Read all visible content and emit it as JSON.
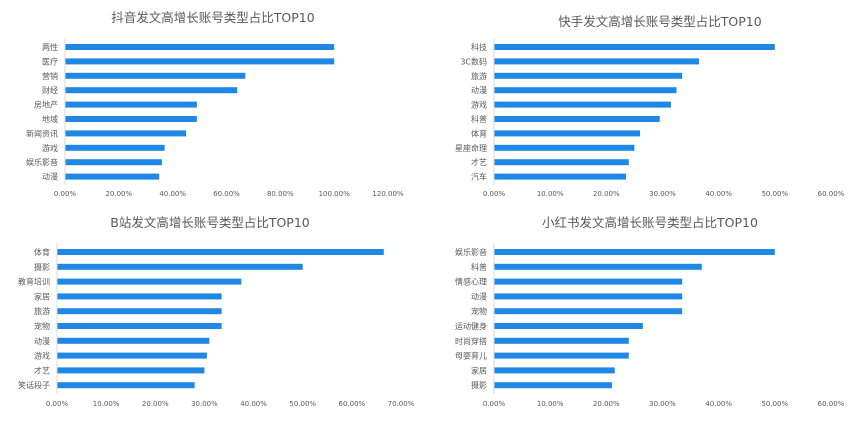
{
  "colors": {
    "bar": "#1f88e5",
    "axis": "#d9d9d9",
    "label": "#595959",
    "title": "#595959"
  },
  "chart_data": [
    {
      "type": "bar",
      "orientation": "horizontal",
      "title": "抖音发文高增长账号类型占比TOP10",
      "categories": [
        "两性",
        "医疗",
        "营销",
        "财经",
        "房地产",
        "地域",
        "新闻资讯",
        "游戏",
        "娱乐影音",
        "动漫"
      ],
      "values": [
        100,
        100,
        67,
        64,
        49,
        49,
        45,
        37,
        36,
        35
      ],
      "xlim": [
        0,
        120
      ],
      "ticks": [
        "0.00%",
        "20.00%",
        "40.00%",
        "60.00%",
        "80.00%",
        "100.00%",
        "120.00%"
      ],
      "grid": false
    },
    {
      "type": "bar",
      "orientation": "horizontal",
      "title": "快手发文高增长账号类型占比TOP10",
      "categories": [
        "科技",
        "3C数码",
        "旅游",
        "动漫",
        "游戏",
        "科普",
        "体育",
        "星座命理",
        "才艺",
        "汽车"
      ],
      "values": [
        50,
        36.5,
        33.5,
        32.5,
        31.5,
        29.5,
        26,
        25,
        24,
        23.5
      ],
      "xlim": [
        0,
        60
      ],
      "ticks": [
        "0.00%",
        "10.00%",
        "20.00%",
        "30.00%",
        "40.00%",
        "50.00%",
        "60.00%"
      ],
      "grid": false
    },
    {
      "type": "bar",
      "orientation": "horizontal",
      "title": "B站发文高增长账号类型占比TOP10",
      "categories": [
        "体育",
        "摄影",
        "教育培训",
        "家居",
        "旅游",
        "宠物",
        "动漫",
        "游戏",
        "才艺",
        "笑话段子"
      ],
      "values": [
        66.5,
        50,
        37.5,
        33.5,
        33.5,
        33.5,
        31,
        30.5,
        30,
        28
      ],
      "xlim": [
        0,
        70
      ],
      "ticks": [
        "0.00%",
        "10.00%",
        "20.00%",
        "30.00%",
        "40.00%",
        "50.00%",
        "60.00%",
        "70.00%"
      ],
      "grid": false
    },
    {
      "type": "bar",
      "orientation": "horizontal",
      "title": "小红书发文高增长账号类型占比TOP10",
      "categories": [
        "娱乐影音",
        "科普",
        "情感心理",
        "动漫",
        "宠物",
        "运动健身",
        "时尚穿搭",
        "母婴育儿",
        "家居",
        "摄影"
      ],
      "values": [
        50,
        37,
        33.5,
        33.5,
        33.5,
        26.5,
        24,
        24,
        21.5,
        21
      ],
      "xlim": [
        0,
        60
      ],
      "ticks": [
        "0.00%",
        "10.00%",
        "20.00%",
        "30.00%",
        "40.00%",
        "50.00%",
        "60.00%"
      ],
      "grid": false
    }
  ]
}
